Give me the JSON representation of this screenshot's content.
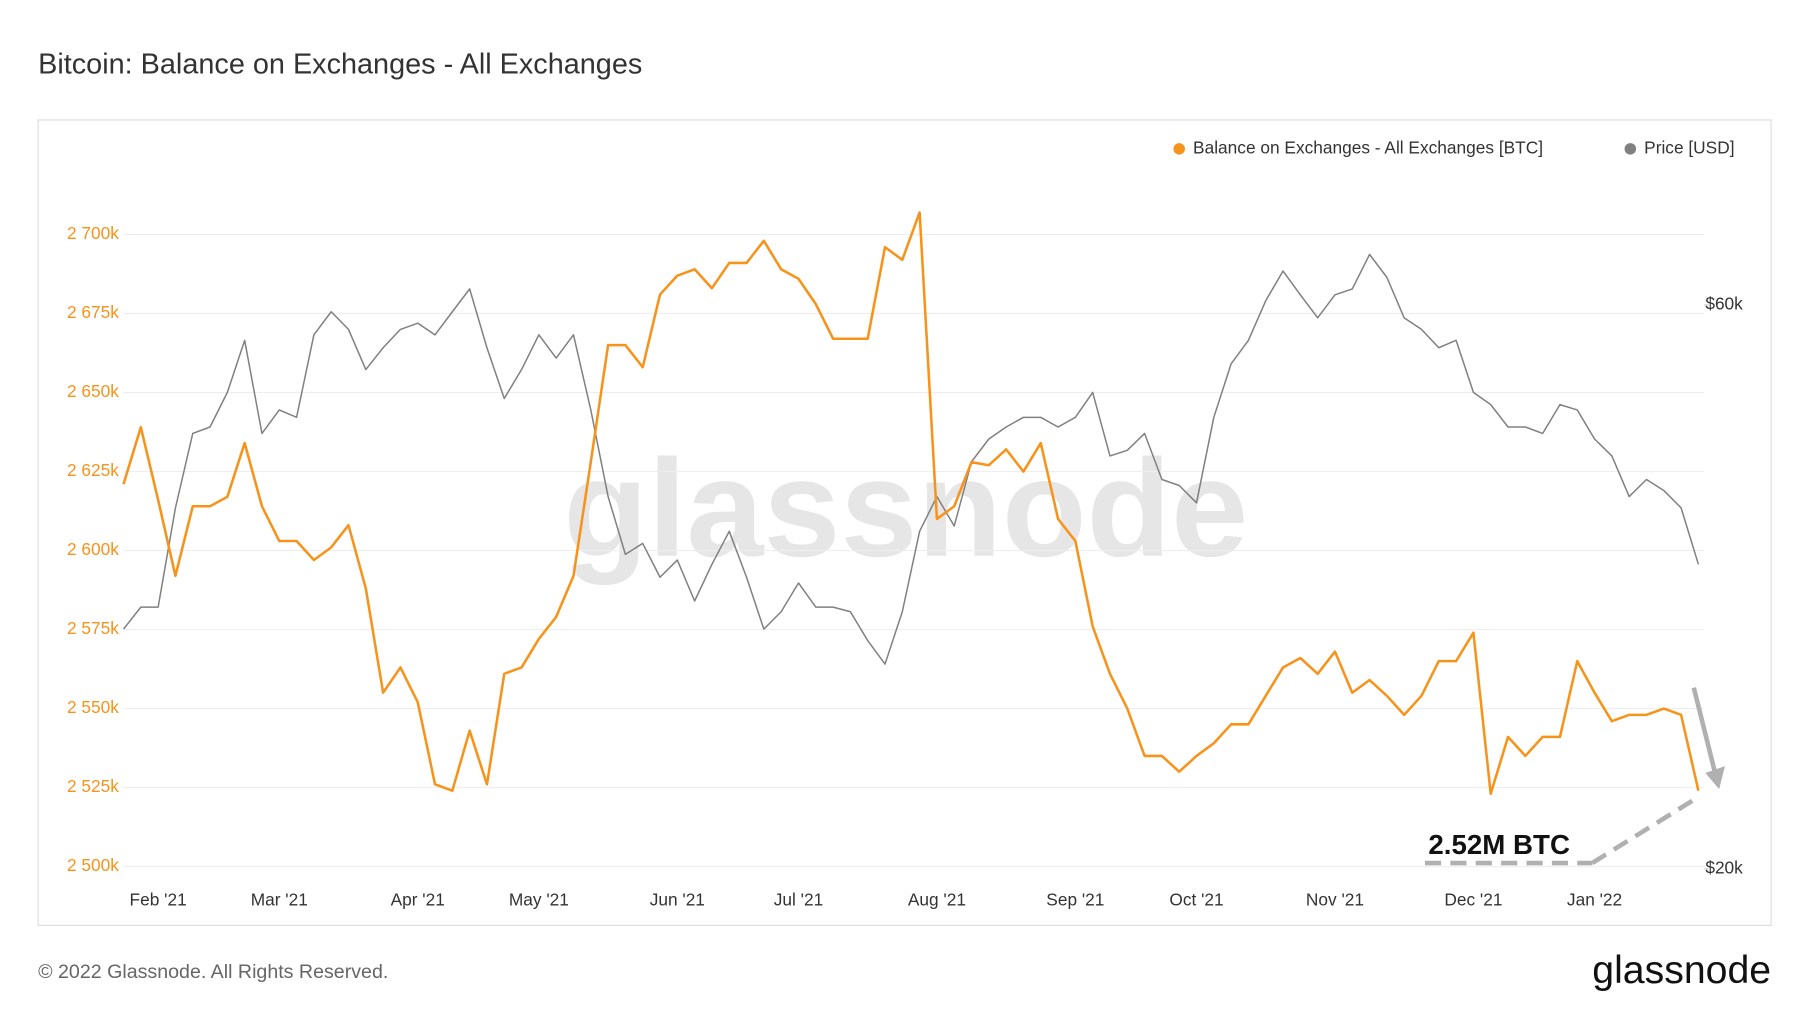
{
  "chart_data": {
    "type": "line",
    "title": "Bitcoin: Balance on Exchanges - All Exchanges",
    "watermark": "glassnode",
    "annotation": "2.52M BTC",
    "footer": "© 2022 Glassnode. All Rights Reserved.",
    "logo": "glassnode",
    "categories": [
      null,
      null,
      "Feb '21",
      null,
      null,
      null,
      null,
      null,
      null,
      "Mar '21",
      null,
      null,
      null,
      null,
      null,
      null,
      null,
      "Apr '21",
      null,
      null,
      null,
      null,
      null,
      null,
      "May '21",
      null,
      null,
      null,
      null,
      null,
      null,
      null,
      "Jun '21",
      null,
      null,
      null,
      null,
      null,
      null,
      "Jul '21",
      null,
      null,
      null,
      null,
      null,
      null,
      null,
      "Aug '21",
      null,
      null,
      null,
      null,
      null,
      null,
      null,
      "Sep '21",
      null,
      null,
      null,
      null,
      null,
      null,
      "Oct '21",
      null,
      null,
      null,
      null,
      null,
      null,
      null,
      "Nov '21",
      null,
      null,
      null,
      null,
      null,
      null,
      null,
      "Dec '21",
      null,
      null,
      null,
      null,
      null,
      null,
      "Jan '22",
      null,
      null,
      null,
      null,
      null,
      null
    ],
    "series": [
      {
        "name": "Balance on Exchanges - All Exchanges [BTC]",
        "color": "#f7931a",
        "axis": "y",
        "values": [
          2621000,
          2639000,
          2616000,
          2592000,
          2614000,
          2614000,
          2617000,
          2634000,
          2614000,
          2603000,
          2603000,
          2597000,
          2601000,
          2608000,
          2588000,
          2555000,
          2563000,
          2552000,
          2526000,
          2524000,
          2543000,
          2526000,
          2561000,
          2563000,
          2572000,
          2579000,
          2592000,
          2628000,
          2665000,
          2665000,
          2658000,
          2681000,
          2687000,
          2689000,
          2683000,
          2691000,
          2691000,
          2698000,
          2689000,
          2686000,
          2678000,
          2667000,
          2667000,
          2667000,
          2696000,
          2692000,
          2707000,
          2610000,
          2614000,
          2628000,
          2627000,
          2632000,
          2625000,
          2634000,
          2610000,
          2603000,
          2576000,
          2561000,
          2550000,
          2535000,
          2535000,
          2530000,
          2535000,
          2539000,
          2545000,
          2545000,
          2554000,
          2563000,
          2566000,
          2561000,
          2568000,
          2555000,
          2559000,
          2554000,
          2548000,
          2554000,
          2565000,
          2565000,
          2574000,
          2523000,
          2541000,
          2535000,
          2541000,
          2541000,
          2565000,
          2555000,
          2546000,
          2548000,
          2548000,
          2550000,
          2548000,
          2524000
        ]
      },
      {
        "name": "Price [USD]",
        "color": "#808080",
        "axis": "y2",
        "values": [
          31900,
          33300,
          33300,
          40400,
          46700,
          47300,
          50600,
          56000,
          46700,
          48900,
          48200,
          56600,
          59200,
          57200,
          52900,
          55200,
          57200,
          57900,
          56600,
          59200,
          61900,
          55200,
          50000,
          52900,
          56600,
          54100,
          56600,
          48900,
          41300,
          36900,
          37700,
          35300,
          36500,
          33700,
          36200,
          38600,
          35300,
          31900,
          33000,
          34900,
          33300,
          33300,
          33000,
          31200,
          29800,
          33000,
          38600,
          41300,
          39000,
          44200,
          46200,
          47300,
          48200,
          48200,
          47300,
          48200,
          50600,
          44700,
          45200,
          46700,
          42700,
          42200,
          40800,
          48200,
          53500,
          56000,
          60500,
          64100,
          61200,
          58500,
          61200,
          61900,
          66200,
          63300,
          58500,
          57200,
          55200,
          56000,
          50600,
          49400,
          47300,
          47300,
          46700,
          49400,
          48900,
          46200,
          44700,
          41300,
          42700,
          41800,
          40400,
          36200
        ]
      }
    ],
    "ylim": [
      2496000,
      2722000
    ],
    "yticks": [
      {
        "value": 2500000,
        "label": "2 500k"
      },
      {
        "value": 2525000,
        "label": "2 525k"
      },
      {
        "value": 2550000,
        "label": "2 550k"
      },
      {
        "value": 2575000,
        "label": "2 575k"
      },
      {
        "value": 2600000,
        "label": "2 600k"
      },
      {
        "value": 2625000,
        "label": "2 625k"
      },
      {
        "value": 2650000,
        "label": "2 650k"
      },
      {
        "value": 2675000,
        "label": "2 675k"
      },
      {
        "value": 2700000,
        "label": "2 700k"
      }
    ],
    "y2lim": [
      19600,
      78800
    ],
    "y2ticks": [
      {
        "value": 20000,
        "label": "$20k"
      },
      {
        "value": 60000,
        "label": "$60k"
      }
    ],
    "y2scale": "log",
    "grid": true,
    "legend": "top-right"
  }
}
